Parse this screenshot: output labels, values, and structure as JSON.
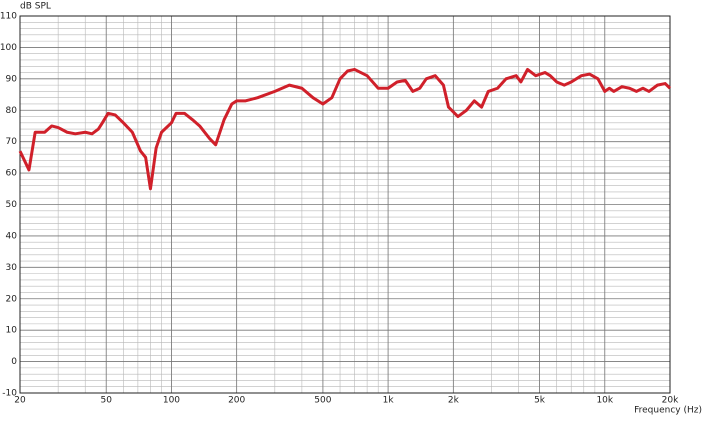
{
  "chart_data": {
    "type": "line",
    "ylabel": "dB SPL",
    "xlabel": "Frequency (Hz)",
    "xscale": "log",
    "grid": true,
    "xlim": [
      20,
      20000
    ],
    "ylim": [
      -10,
      110
    ],
    "xticks": [
      20,
      50,
      100,
      200,
      500,
      {
        "value": 1000,
        "label": "1k"
      },
      {
        "value": 2000,
        "label": "2k"
      },
      {
        "value": 5000,
        "label": "5k"
      },
      {
        "value": 10000,
        "label": "10k"
      },
      {
        "value": 20000,
        "label": "20k"
      }
    ],
    "yticks": [
      -10,
      0,
      10,
      20,
      30,
      40,
      50,
      60,
      70,
      80,
      90,
      100,
      110
    ],
    "x": [
      20,
      22,
      23.5,
      26,
      28,
      30,
      33,
      36,
      40,
      43,
      46,
      48,
      51,
      55,
      60,
      66,
      72,
      76,
      80,
      85,
      90,
      100,
      105,
      115,
      125,
      135,
      150,
      160,
      175,
      190,
      200,
      220,
      250,
      300,
      350,
      400,
      450,
      500,
      550,
      600,
      650,
      700,
      800,
      900,
      1000,
      1100,
      1200,
      1300,
      1400,
      1500,
      1650,
      1800,
      1900,
      2100,
      2300,
      2500,
      2700,
      2900,
      3200,
      3500,
      3900,
      4100,
      4400,
      4800,
      5300,
      5600,
      6000,
      6500,
      7000,
      7800,
      8500,
      9300,
      10000,
      10500,
      11000,
      12000,
      13000,
      14000,
      15000,
      16000,
      17500,
      19000,
      20000
    ],
    "series": [
      {
        "color": "#d0202a",
        "values": [
          67,
          61,
          73,
          73,
          75,
          74.5,
          73,
          72.5,
          73,
          72.5,
          74,
          76,
          79,
          78.5,
          76,
          73,
          67,
          65,
          55,
          68,
          73,
          76,
          79,
          79,
          77,
          75,
          71,
          69,
          77,
          82,
          83,
          83,
          84,
          86,
          88,
          87,
          84,
          82,
          84,
          90,
          92.5,
          93,
          91,
          87,
          87,
          89,
          89.5,
          86,
          87,
          90,
          91,
          88,
          81,
          78,
          80,
          83,
          81,
          86,
          87,
          90,
          91,
          89,
          93,
          91,
          92,
          91,
          89,
          88,
          89,
          91,
          91.5,
          90,
          86,
          87,
          86,
          87.5,
          87,
          86,
          87,
          86,
          88,
          88.5,
          87
        ]
      }
    ]
  }
}
